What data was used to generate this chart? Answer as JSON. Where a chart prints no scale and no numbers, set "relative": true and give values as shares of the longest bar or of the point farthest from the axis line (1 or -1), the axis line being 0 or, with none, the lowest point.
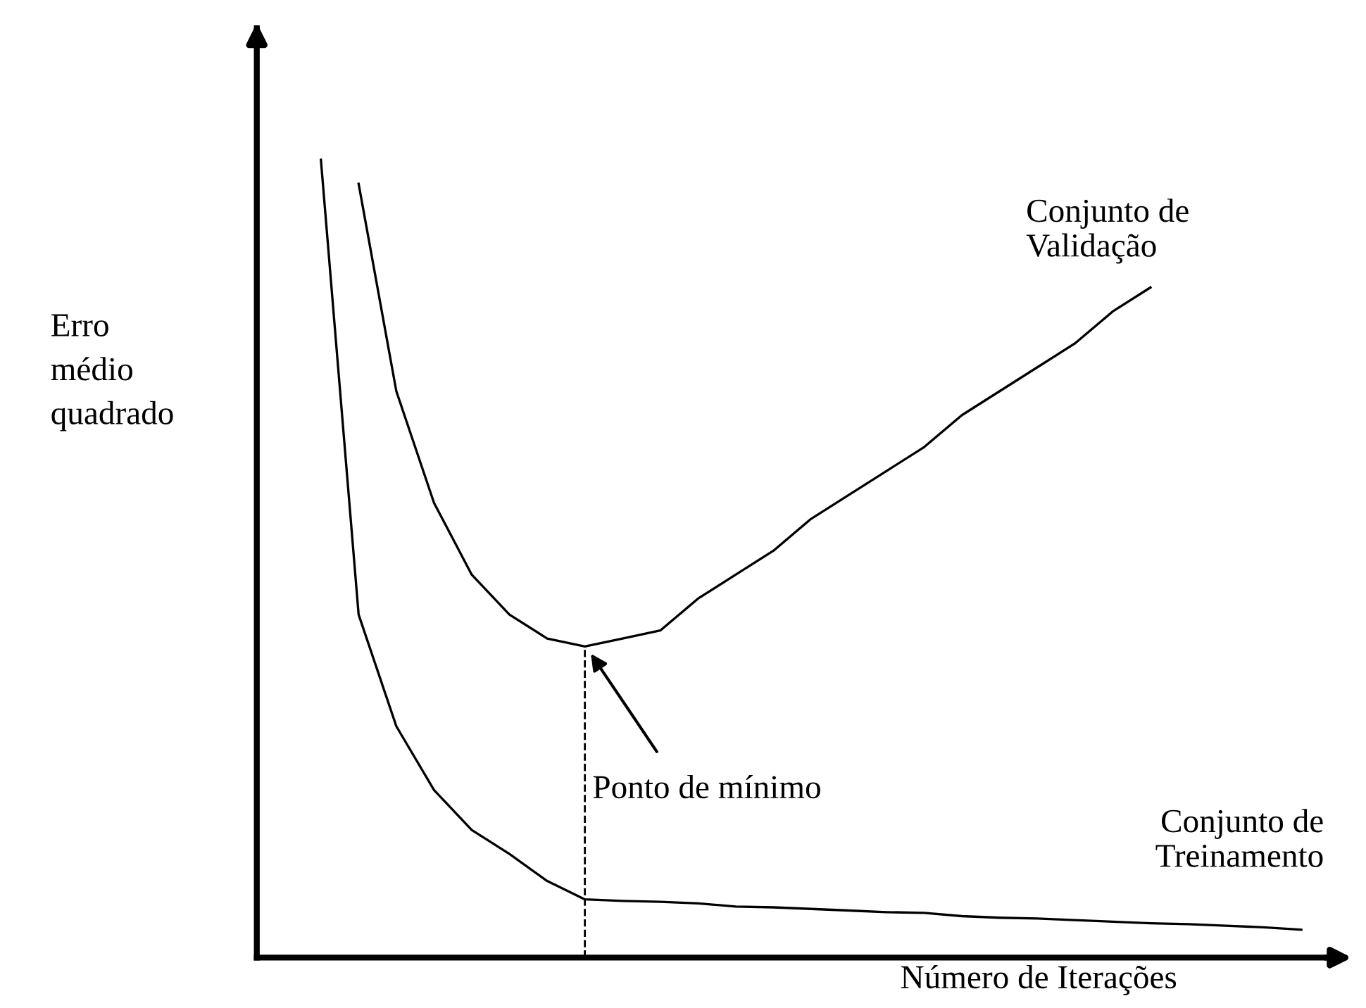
{
  "chart_data": {
    "type": "line",
    "relative": true,
    "xlabel": "Número de Iterações",
    "ylabel": "Erro\nmédio\nquadrado",
    "categories": [
      null,
      null,
      null,
      null,
      null,
      null,
      null,
      null,
      null,
      null,
      null,
      null,
      null,
      null,
      null,
      null,
      null,
      null,
      null,
      null,
      null,
      null,
      null,
      null,
      null,
      null,
      null
    ],
    "series": [
      {
        "name": "Conjunto de\nValidação",
        "color": "#000000",
        "values": [
          null,
          0.97,
          0.71,
          0.57,
          0.48,
          0.43,
          0.4,
          0.39,
          0.4,
          0.41,
          0.45,
          0.48,
          0.51,
          0.55,
          0.58,
          0.61,
          0.64,
          0.68,
          0.71,
          0.74,
          0.77,
          0.81,
          0.84,
          null,
          null,
          null,
          null
        ]
      },
      {
        "name": "Conjunto de\nTreinamento",
        "color": "#000000",
        "values": [
          1,
          0.43,
          0.29,
          0.21,
          0.16,
          0.13,
          0.096,
          0.073,
          0.071,
          0.07,
          0.068,
          0.064,
          0.063,
          0.061,
          0.059,
          0.057,
          0.056,
          0.052,
          0.05,
          0.049,
          0.047,
          0.045,
          0.043,
          0.042,
          0.04,
          0.038,
          0.035
        ]
      }
    ],
    "annotations": [
      "Ponto de mínimo"
    ],
    "legend": false,
    "marker": "none",
    "line_style": "solid"
  }
}
